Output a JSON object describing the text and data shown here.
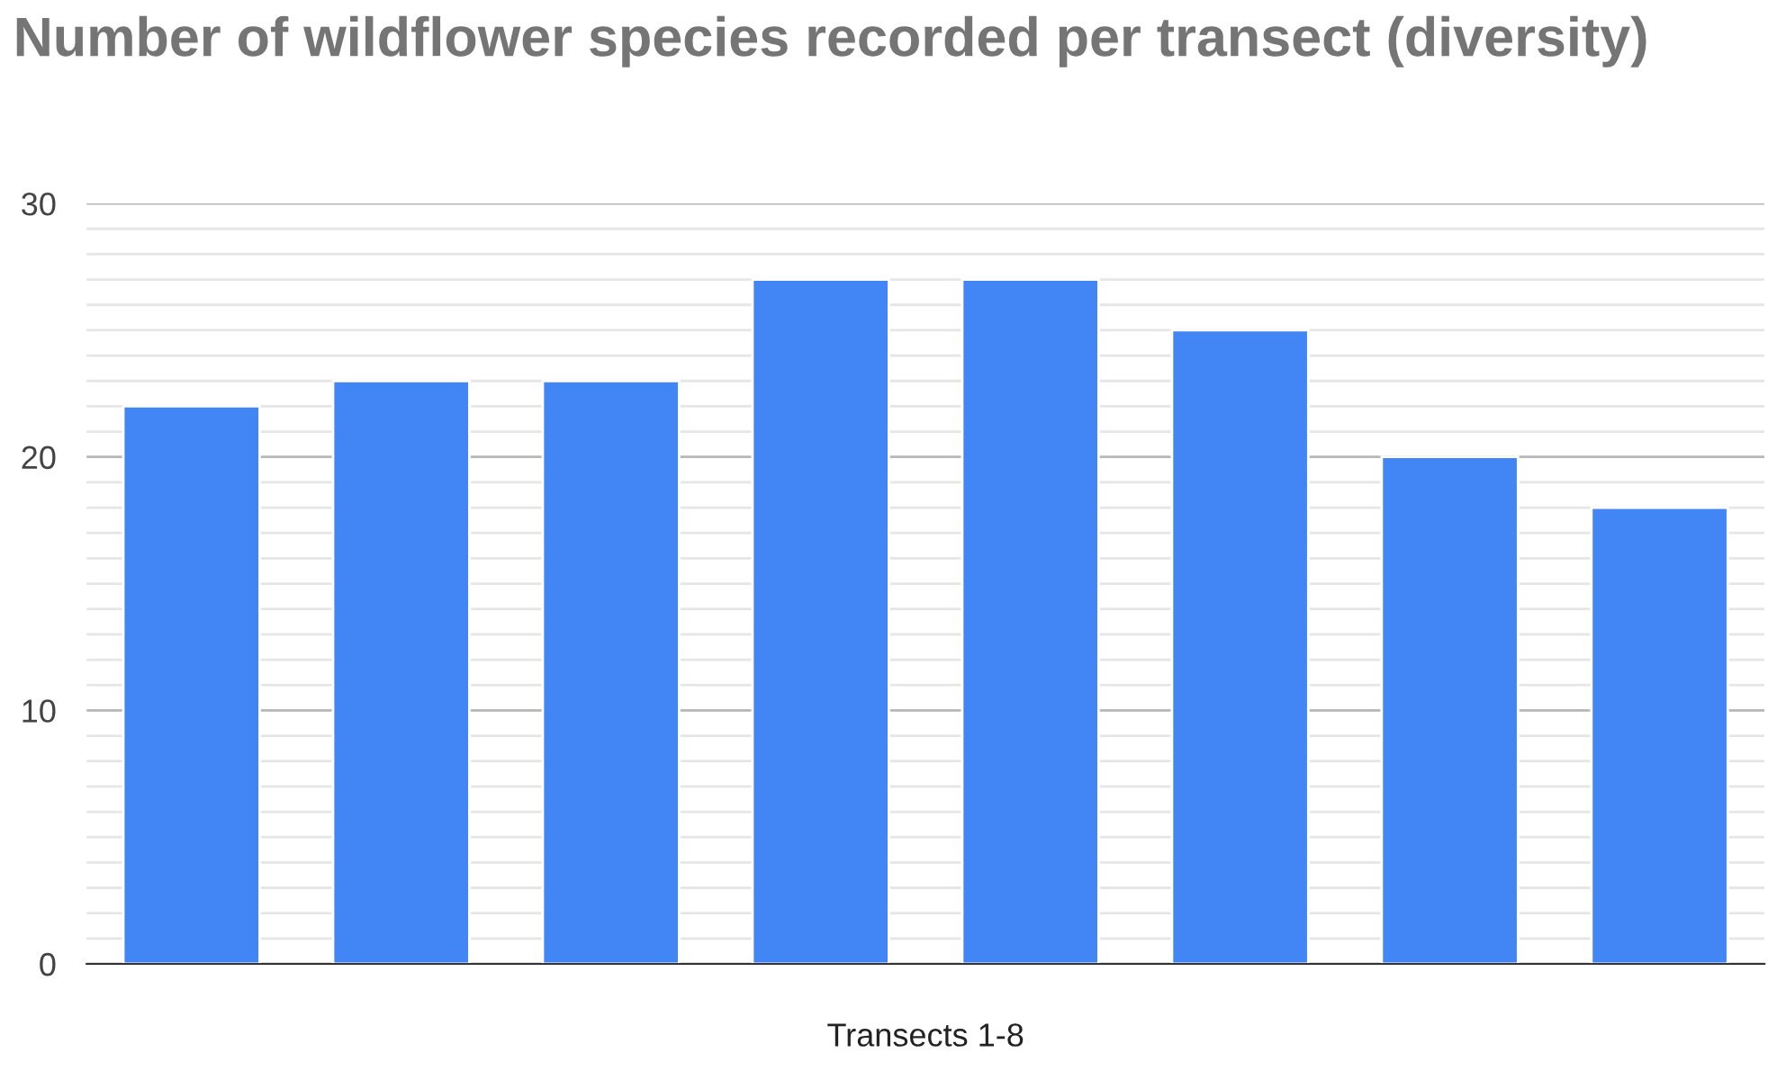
{
  "chart_data": {
    "type": "bar",
    "title": "Number of wildflower species recorded per transect (diversity)",
    "xlabel": "Transects 1-8",
    "categories": [
      null,
      null,
      null,
      null,
      null,
      null,
      null,
      null
    ],
    "series": [
      {
        "color": "#4285f4",
        "values": [
          22,
          23,
          23,
          27,
          27,
          25,
          20,
          18
        ]
      }
    ],
    "ylim": [
      0,
      30
    ],
    "yticks": [
      0,
      {
        "value": 1,
        "label": null
      },
      {
        "value": 2,
        "label": null
      },
      {
        "value": 3,
        "label": null
      },
      {
        "value": 4,
        "label": null
      },
      {
        "value": 5,
        "label": null
      },
      {
        "value": 6,
        "label": null
      },
      {
        "value": 7,
        "label": null
      },
      {
        "value": 8,
        "label": null
      },
      {
        "value": 9,
        "label": null
      },
      10,
      {
        "value": 11,
        "label": null
      },
      {
        "value": 12,
        "label": null
      },
      {
        "value": 13,
        "label": null
      },
      {
        "value": 14,
        "label": null
      },
      {
        "value": 15,
        "label": null
      },
      {
        "value": 16,
        "label": null
      },
      {
        "value": 17,
        "label": null
      },
      {
        "value": 18,
        "label": null
      },
      {
        "value": 19,
        "label": null
      },
      20,
      {
        "value": 21,
        "label": null
      },
      {
        "value": 22,
        "label": null
      },
      {
        "value": 23,
        "label": null
      },
      {
        "value": 24,
        "label": null
      },
      {
        "value": 25,
        "label": null
      },
      {
        "value": 26,
        "label": null
      },
      {
        "value": 27,
        "label": null
      },
      {
        "value": 28,
        "label": null
      },
      {
        "value": 29,
        "label": null
      },
      30
    ],
    "grid": "y",
    "legend": false
  }
}
